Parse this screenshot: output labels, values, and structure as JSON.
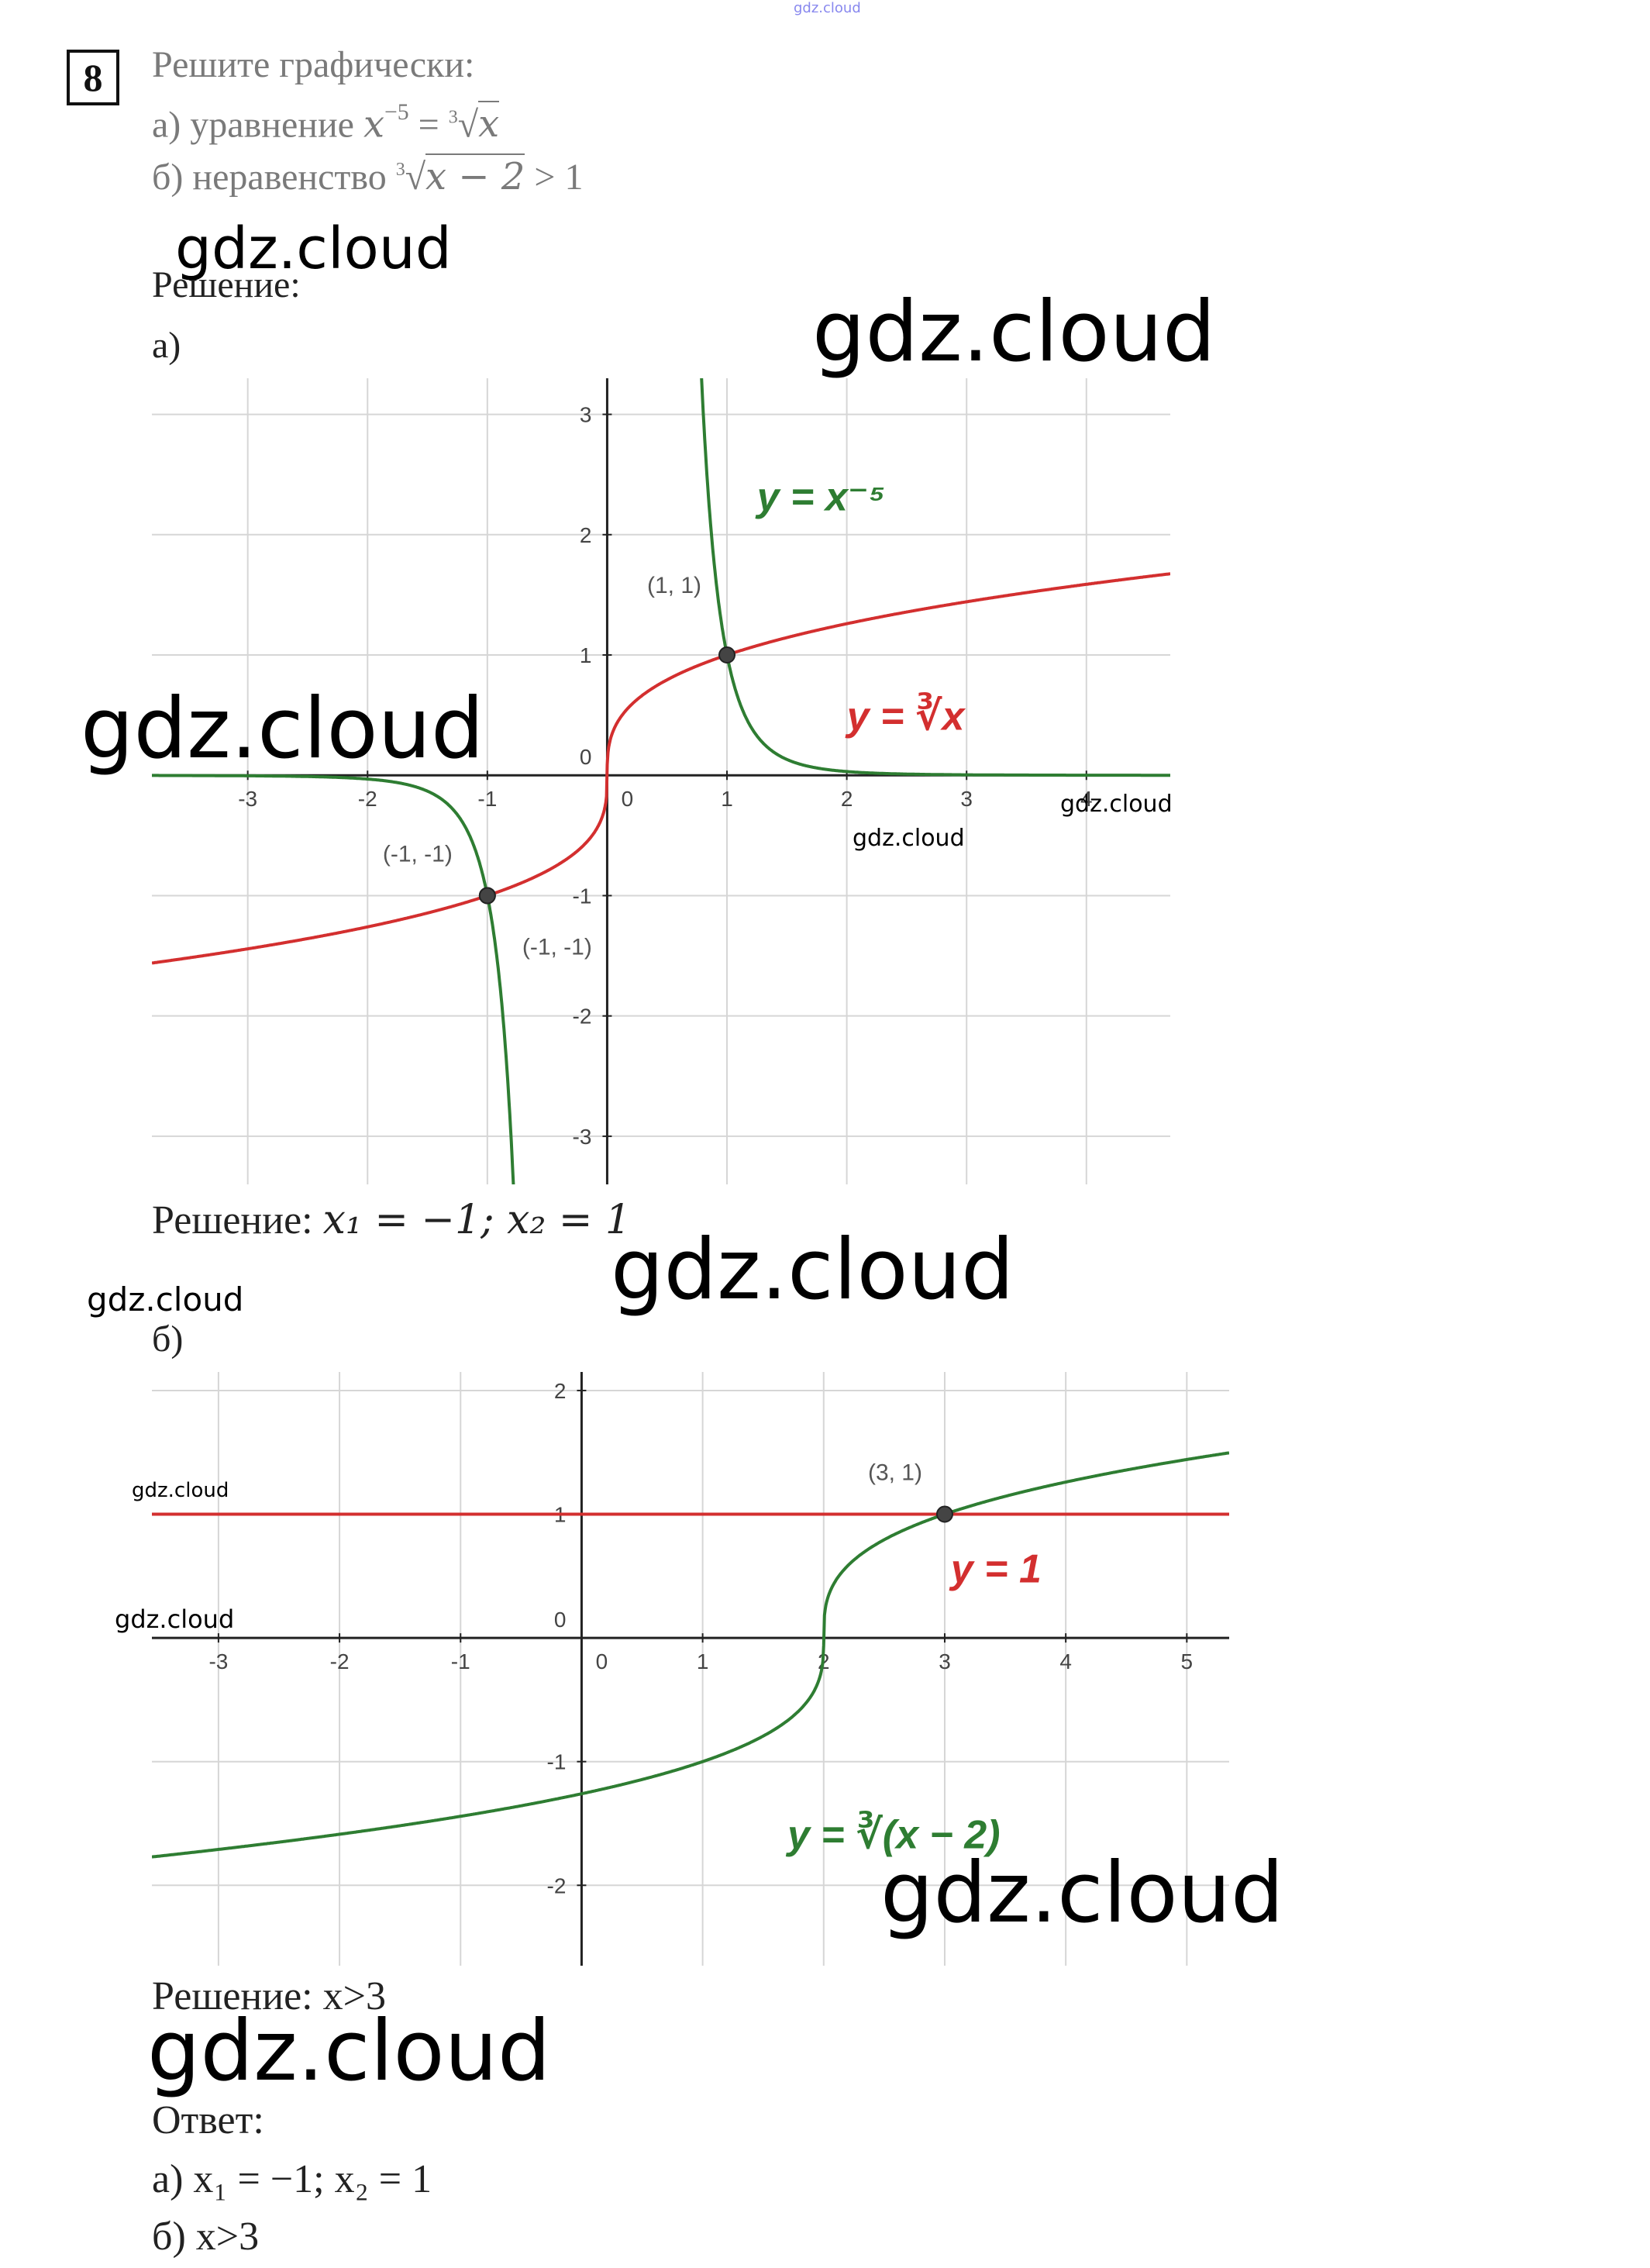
{
  "task": {
    "number": "8",
    "title": "Решите графически:",
    "a_prefix": "а) уравнение ",
    "a_lhs_base": "x",
    "a_lhs_exp": "−5",
    "a_eq": " = ",
    "a_root_index": "3",
    "a_root_radicand": "x",
    "b_prefix": "б) неравенство ",
    "b_root_index": "3",
    "b_root_radicand": "x − 2",
    "b_rest": " > 1"
  },
  "solution": {
    "heading": "Решение:",
    "part_a_label": "а)",
    "part_a_result_prefix": "Решение: ",
    "part_a_result_math": "x₁ = −1; x₂ = 1",
    "part_b_label": "б)",
    "part_b_result": "Решение: x>3"
  },
  "answer": {
    "heading": "Ответ:",
    "a": "а) x₁ = −1; x₂ = 1",
    "b": "б) x>3"
  },
  "watermarks": {
    "top_small": "gdz.cloud",
    "w1": "gdz.cloud",
    "w2": "gdz.cloud",
    "w3": "gdz.cloud",
    "w4": "gdz.cloud",
    "w5": "gdz.cloud",
    "w6": "gdz.cloud",
    "w7": "gdz.cloud",
    "w8": "gdz.cloud",
    "w9": "gdz.cloud",
    "w10": "gdz.cloud",
    "w11": "gdz.cloud"
  },
  "chart_data": [
    {
      "type": "line",
      "xlim": [
        -3.8,
        4.7
      ],
      "ylim": [
        -3.4,
        3.3
      ],
      "grid": true,
      "x_ticks": [
        "-3",
        "-2",
        "-1",
        "0",
        "1",
        "2",
        "3",
        "4"
      ],
      "y_ticks": [
        "-3",
        "-2",
        "-1",
        "0",
        "1",
        "2",
        "3"
      ],
      "series": [
        {
          "name": "y = x⁻⁵",
          "formula": "x^-5",
          "color": "#2e7d32"
        },
        {
          "name": "y = ∛x",
          "formula": "cbrt(x)",
          "color": "#d32f2f"
        }
      ],
      "points": [
        {
          "x": 1,
          "y": 1,
          "label": "(1, 1)"
        },
        {
          "x": -1,
          "y": -1,
          "label": "(-1, -1)"
        },
        {
          "x": -1,
          "y": -1,
          "label": "(-1, -1)"
        }
      ],
      "labels": {
        "green": "y = x⁻⁵",
        "red": "y = ∛x"
      }
    },
    {
      "type": "line",
      "xlim": [
        -3.55,
        5.35
      ],
      "ylim": [
        -2.65,
        2.15
      ],
      "grid": true,
      "x_ticks": [
        "-3",
        "-2",
        "-1",
        "0",
        "1",
        "2",
        "3",
        "4",
        "5"
      ],
      "y_ticks": [
        "-2",
        "-1",
        "0",
        "1",
        "2"
      ],
      "series": [
        {
          "name": "y = ∛(x − 2)",
          "formula": "cbrt(x-2)",
          "color": "#2e7d32"
        },
        {
          "name": "y = 1",
          "formula": "1",
          "color": "#d32f2f"
        }
      ],
      "points": [
        {
          "x": 3,
          "y": 1,
          "label": "(3, 1)"
        }
      ],
      "labels": {
        "green": "y = ∛(x − 2)",
        "red": "y = 1"
      }
    }
  ]
}
